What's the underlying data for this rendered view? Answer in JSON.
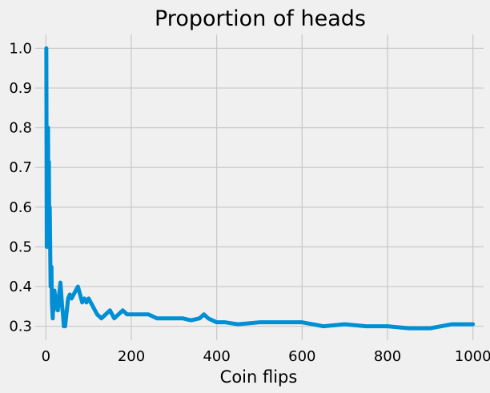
{
  "chart_data": {
    "type": "line",
    "title": "Proportion of heads",
    "xlabel": "Coin flips",
    "ylabel": "",
    "xlim": [
      -25,
      1025
    ],
    "ylim": [
      0.265,
      1.035
    ],
    "xticks": [
      0,
      200,
      400,
      600,
      800,
      1000
    ],
    "yticks": [
      0.3,
      0.4,
      0.5,
      0.6,
      0.7,
      0.8,
      0.9,
      1.0
    ],
    "grid": true,
    "legend": "none",
    "colors": {
      "line": "#008fd5",
      "grid": "#cbcbcb",
      "background": "#f0f0f0"
    },
    "series": [
      {
        "x": [
          1,
          2,
          3,
          4,
          5,
          6,
          7,
          8,
          9,
          10,
          11,
          12,
          13,
          14,
          15,
          16,
          17,
          18,
          19,
          20,
          22,
          24,
          26,
          28,
          30,
          32,
          34,
          36,
          38,
          40,
          42,
          45,
          48,
          52,
          56,
          60,
          65,
          70,
          75,
          80,
          85,
          90,
          95,
          100,
          110,
          120,
          130,
          140,
          150,
          160,
          170,
          180,
          190,
          200,
          220,
          240,
          260,
          280,
          300,
          320,
          340,
          360,
          370,
          380,
          400,
          420,
          450,
          500,
          550,
          600,
          650,
          700,
          750,
          800,
          850,
          900,
          950,
          1000
        ],
        "y": [
          1.0,
          0.5,
          0.667,
          0.5,
          0.8,
          0.5,
          0.714,
          0.5,
          0.6,
          0.5,
          0.4,
          0.4,
          0.45,
          0.36,
          0.34,
          0.32,
          0.36,
          0.34,
          0.38,
          0.39,
          0.37,
          0.36,
          0.35,
          0.34,
          0.37,
          0.39,
          0.41,
          0.38,
          0.35,
          0.33,
          0.3,
          0.3,
          0.33,
          0.37,
          0.38,
          0.37,
          0.38,
          0.39,
          0.4,
          0.38,
          0.36,
          0.37,
          0.36,
          0.37,
          0.35,
          0.33,
          0.32,
          0.33,
          0.34,
          0.32,
          0.33,
          0.34,
          0.33,
          0.33,
          0.33,
          0.33,
          0.32,
          0.32,
          0.32,
          0.32,
          0.315,
          0.32,
          0.33,
          0.32,
          0.31,
          0.31,
          0.305,
          0.31,
          0.31,
          0.31,
          0.3,
          0.305,
          0.3,
          0.3,
          0.295,
          0.295,
          0.305,
          0.305
        ]
      }
    ]
  }
}
